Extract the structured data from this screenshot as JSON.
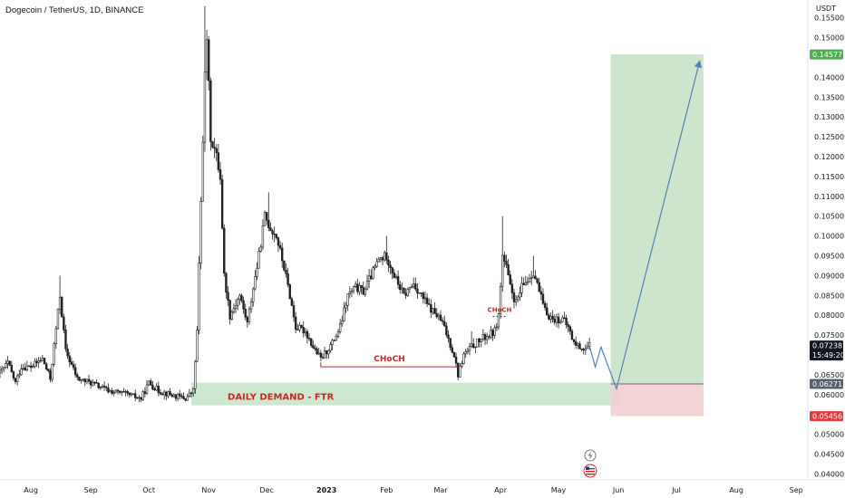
{
  "title": "Dogecoin / TetherUS, 1D, BINANCE",
  "currency": "USDT",
  "colors": {
    "candle": "#202226",
    "demand_zone": "#c8e6c9",
    "target_zone": "#c8e2c8",
    "stop_zone": "#f2cfd2",
    "annotation_red": "#c62828",
    "projection": "#5a7fb4",
    "badge_green": "#4caf50",
    "badge_red": "#e53935",
    "badge_dark": "#131722",
    "badge_gray": "#58616f"
  },
  "annotations": {
    "demand_label": "DAILY DEMAND - FTR",
    "choch_main": "CHoCH",
    "choch_small": "CHoCH"
  },
  "chart_data": {
    "type": "candlestick",
    "title": "Dogecoin / TetherUS, 1D, BINANCE",
    "y_axis_label": "USDT",
    "ylim": [
      0.0385,
      0.1595
    ],
    "y_ticks": [
      "0.15500",
      "0.15000",
      "0.14000",
      "0.13500",
      "0.13000",
      "0.12500",
      "0.12000",
      "0.11500",
      "0.11000",
      "0.10500",
      "0.10000",
      "0.09500",
      "0.09000",
      "0.08500",
      "0.08000",
      "0.07500",
      "0.06500",
      "0.06000",
      "0.05000",
      "0.04500",
      "0.04000"
    ],
    "x_ticks": [
      "Aug",
      "Sep",
      "Oct",
      "Nov",
      "Dec",
      "2023",
      "Feb",
      "Mar",
      "Apr",
      "May",
      "Jun",
      "Jul",
      "Aug",
      "Sep"
    ],
    "x_tick_days": [
      0,
      31,
      61,
      92,
      122,
      153,
      184,
      212,
      243,
      273,
      304,
      334,
      365,
      396
    ],
    "xlim_days": [
      -16,
      402
    ],
    "price_badges": [
      {
        "label": "0.14577",
        "value": 0.14577,
        "style": "green"
      },
      {
        "label": "0.07238",
        "sub": "15:49:20",
        "value": 0.07238,
        "style": "dark"
      },
      {
        "label": "0.06271",
        "value": 0.06271,
        "style": "gray"
      },
      {
        "label": "0.05456",
        "value": 0.05456,
        "style": "red"
      }
    ],
    "anchors": [
      [
        -16,
        0.0655
      ],
      [
        -12,
        0.068
      ],
      [
        -8,
        0.063
      ],
      [
        -5,
        0.067
      ],
      [
        0,
        0.067
      ],
      [
        6,
        0.069
      ],
      [
        10,
        0.064
      ],
      [
        15,
        0.085
      ],
      [
        18,
        0.071
      ],
      [
        24,
        0.064
      ],
      [
        31,
        0.063
      ],
      [
        40,
        0.061
      ],
      [
        50,
        0.06
      ],
      [
        57,
        0.059
      ],
      [
        61,
        0.063
      ],
      [
        66,
        0.061
      ],
      [
        72,
        0.06
      ],
      [
        80,
        0.059
      ],
      [
        84,
        0.061
      ],
      [
        86,
        0.076
      ],
      [
        89,
        0.125
      ],
      [
        90,
        0.14
      ],
      [
        91,
        0.15
      ],
      [
        93,
        0.125
      ],
      [
        96,
        0.12
      ],
      [
        98,
        0.115
      ],
      [
        100,
        0.09
      ],
      [
        103,
        0.08
      ],
      [
        108,
        0.085
      ],
      [
        112,
        0.078
      ],
      [
        115,
        0.087
      ],
      [
        118,
        0.095
      ],
      [
        121,
        0.105
      ],
      [
        124,
        0.102
      ],
      [
        127,
        0.1
      ],
      [
        131,
        0.092
      ],
      [
        134,
        0.085
      ],
      [
        137,
        0.077
      ],
      [
        142,
        0.076
      ],
      [
        146,
        0.072
      ],
      [
        150,
        0.069
      ],
      [
        153,
        0.071
      ],
      [
        156,
        0.073
      ],
      [
        160,
        0.077
      ],
      [
        164,
        0.085
      ],
      [
        168,
        0.087
      ],
      [
        172,
        0.086
      ],
      [
        176,
        0.09
      ],
      [
        180,
        0.094
      ],
      [
        184,
        0.095
      ],
      [
        188,
        0.09
      ],
      [
        193,
        0.085
      ],
      [
        198,
        0.088
      ],
      [
        202,
        0.085
      ],
      [
        206,
        0.082
      ],
      [
        210,
        0.08
      ],
      [
        213,
        0.078
      ],
      [
        216,
        0.074
      ],
      [
        219,
        0.07
      ],
      [
        221,
        0.065
      ],
      [
        224,
        0.07
      ],
      [
        228,
        0.072
      ],
      [
        233,
        0.074
      ],
      [
        237,
        0.075
      ],
      [
        240,
        0.076
      ],
      [
        242,
        0.08
      ],
      [
        244,
        0.095
      ],
      [
        246,
        0.092
      ],
      [
        248,
        0.087
      ],
      [
        251,
        0.083
      ],
      [
        254,
        0.087
      ],
      [
        257,
        0.089
      ],
      [
        260,
        0.091
      ],
      [
        263,
        0.086
      ],
      [
        266,
        0.081
      ],
      [
        270,
        0.079
      ],
      [
        275,
        0.079
      ],
      [
        278,
        0.077
      ],
      [
        281,
        0.073
      ],
      [
        284,
        0.072
      ],
      [
        287,
        0.0715
      ],
      [
        289,
        0.0723
      ]
    ],
    "spikes": [
      [
        15,
        0.09
      ],
      [
        90,
        0.158
      ],
      [
        91,
        0.152
      ],
      [
        244,
        0.105
      ],
      [
        260,
        0.095
      ],
      [
        184,
        0.1
      ],
      [
        123,
        0.111
      ],
      [
        228,
        0.076
      ]
    ],
    "zones": [
      {
        "name": "daily-demand-ftr",
        "x0": 83,
        "x1": 304,
        "y_top": 0.063,
        "y_bottom": 0.0573
      },
      {
        "name": "target",
        "x0": 300,
        "x1": 348,
        "y_top": 0.14577,
        "y_bottom": 0.06271
      },
      {
        "name": "stop",
        "x0": 300,
        "x1": 348,
        "y_top": 0.06271,
        "y_bottom": 0.05456
      }
    ],
    "levels": [
      {
        "name": "choch-main-line",
        "x0": 150,
        "x1": 221,
        "value": 0.067
      },
      {
        "name": "choch-small-line",
        "x0": 239,
        "x1": 246,
        "value": 0.0797
      },
      {
        "name": "entry-line",
        "x0": 300,
        "x1": 348,
        "value": 0.06271
      }
    ],
    "projection": [
      [
        289,
        0.0723
      ],
      [
        292,
        0.067
      ],
      [
        295,
        0.072
      ],
      [
        303,
        0.0615
      ],
      [
        346,
        0.144
      ]
    ]
  }
}
